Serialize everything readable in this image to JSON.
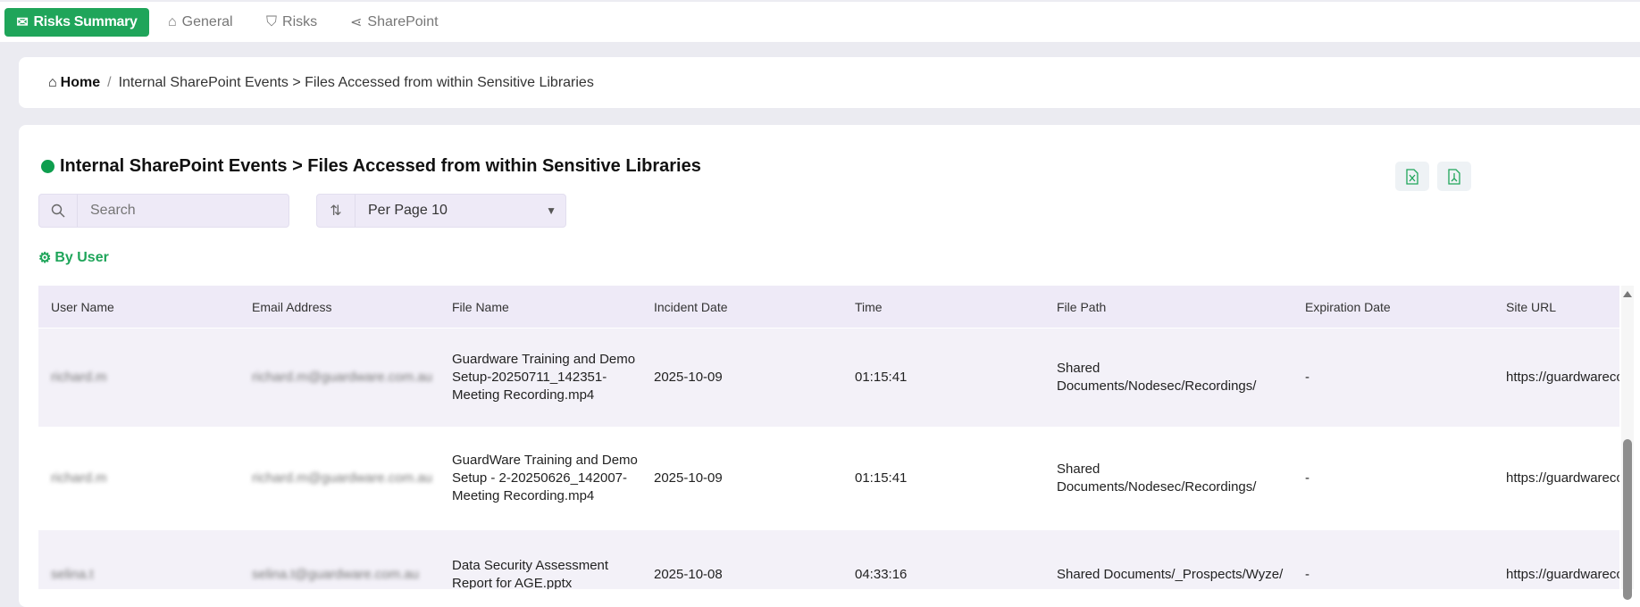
{
  "nav": {
    "tabs": [
      {
        "label": "Risks Summary",
        "icon": "envelope-icon",
        "active": true
      },
      {
        "label": "General",
        "icon": "home-lock-icon"
      },
      {
        "label": "Risks",
        "icon": "shield-alert-icon"
      },
      {
        "label": "SharePoint",
        "icon": "share-icon"
      }
    ]
  },
  "breadcrumb": {
    "home": "Home",
    "sep": "/",
    "current": "Internal SharePoint Events > Files Accessed from within Sensitive Libraries"
  },
  "title": "Internal SharePoint Events > Files Accessed from within Sensitive Libraries",
  "status_color": "#0e9e4e",
  "search": {
    "placeholder": "Search"
  },
  "per_page": {
    "value": "Per Page 10"
  },
  "export": {
    "excel": "excel-export-icon",
    "pdf": "pdf-export-icon"
  },
  "group": {
    "label": "By User"
  },
  "table": {
    "columns": [
      "User Name",
      "Email Address",
      "File Name",
      "Incident Date",
      "Time",
      "File Path",
      "Expiration Date",
      "Site URL"
    ],
    "rows": [
      [
        "richard.m",
        "richard.m@guardware.com.au",
        "Guardware Training and Demo Setup-20250711_142351-Meeting Recording.mp4",
        "2025-10-09",
        "01:15:41",
        "Shared Documents/Nodesec/Recordings/",
        "-",
        "https://guardwareco"
      ],
      [
        "richard.m",
        "richard.m@guardware.com.au",
        "GuardWare Training and Demo Setup - 2-20250626_142007-Meeting Recording.mp4",
        "2025-10-09",
        "01:15:41",
        "Shared Documents/Nodesec/Recordings/",
        "-",
        "https://guardwareco"
      ],
      [
        "selina.t",
        "selina.t@guardware.com.au",
        "Data Security Assessment Report for AGE.pptx",
        "2025-10-08",
        "04:33:16",
        "Shared Documents/_Prospects/Wyze/",
        "-",
        "https://guardwareco"
      ]
    ]
  }
}
